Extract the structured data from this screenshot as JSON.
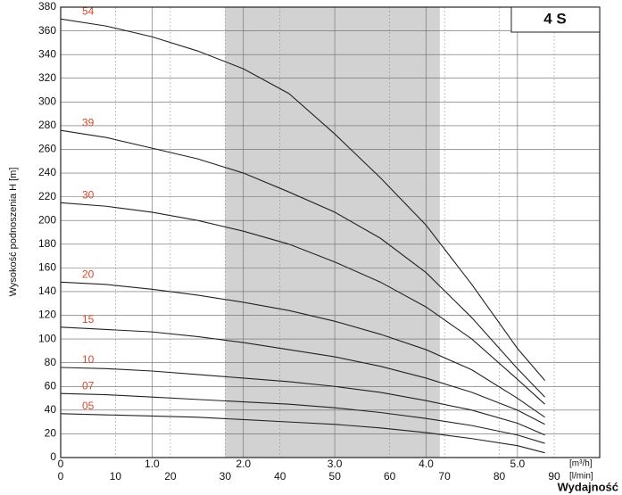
{
  "chart_data": {
    "type": "line",
    "badge": "4 S",
    "ylabel": "Wysokość podnoszenia H [m]",
    "xlabel": "Wydajność",
    "x_unit": "[m³/h]",
    "x2_unit": "[l/min]",
    "xlim": [
      0,
      5.9
    ],
    "xticks": [
      0,
      {
        "value": 1,
        "label": "1.0"
      },
      {
        "value": 2,
        "label": "2.0"
      },
      {
        "value": 3,
        "label": "3.0"
      },
      {
        "value": 4,
        "label": "4.0"
      },
      {
        "value": 5,
        "label": "5.0"
      }
    ],
    "x2lim": [
      0,
      98.3
    ],
    "x2ticks": [
      0,
      10,
      20,
      30,
      40,
      50,
      60,
      70,
      80,
      90
    ],
    "ylim": [
      0,
      380
    ],
    "yticks": [
      0,
      20,
      40,
      60,
      80,
      100,
      120,
      140,
      160,
      180,
      200,
      220,
      240,
      260,
      280,
      300,
      320,
      340,
      360,
      380
    ],
    "grid": true,
    "shaded_range": [
      1.8,
      4.15
    ],
    "x": [
      0,
      0.5,
      1.0,
      1.5,
      2.0,
      2.5,
      3.0,
      3.5,
      4.0,
      4.5,
      5.0,
      5.3
    ],
    "series": [
      {
        "name": "54",
        "color": "#222222",
        "values": [
          370,
          364,
          355,
          343,
          328,
          307,
          273,
          236,
          196,
          146,
          92,
          65
        ]
      },
      {
        "name": "39",
        "color": "#222222",
        "values": [
          276,
          270,
          261,
          252,
          240,
          224,
          207,
          185,
          156,
          118,
          75,
          51
        ]
      },
      {
        "name": "30",
        "color": "#222222",
        "values": [
          215,
          212,
          207,
          200,
          191,
          180,
          165,
          148,
          127,
          100,
          66,
          45
        ]
      },
      {
        "name": "20",
        "color": "#222222",
        "values": [
          148,
          146,
          142,
          137,
          131,
          124,
          115,
          104,
          91,
          74,
          50,
          34
        ]
      },
      {
        "name": "15",
        "color": "#222222",
        "values": [
          110,
          108,
          106,
          102,
          97,
          91,
          85,
          77,
          67,
          55,
          40,
          28
        ]
      },
      {
        "name": "10",
        "color": "#222222",
        "values": [
          76,
          75,
          73,
          70,
          67,
          64,
          60,
          55,
          48,
          40,
          29,
          19
        ]
      },
      {
        "name": "07",
        "color": "#222222",
        "values": [
          54,
          53,
          51,
          49,
          47,
          45,
          42,
          38,
          33,
          27,
          19,
          12
        ]
      },
      {
        "name": "05",
        "color": "#222222",
        "values": [
          37,
          36,
          35,
          34,
          32,
          30,
          28,
          25,
          21,
          16,
          10,
          4
        ]
      }
    ]
  }
}
